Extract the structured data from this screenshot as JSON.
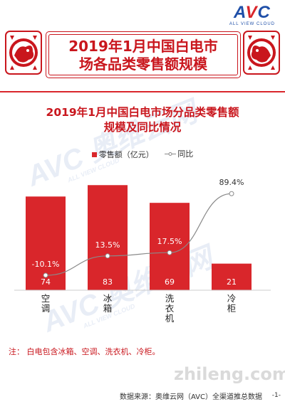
{
  "header": {
    "logo": "AVC",
    "logo_sub": "ALL VIEW CLOUD",
    "title_line1": "2019年1月中国白电市",
    "title_line2": "场各品类零售额规模"
  },
  "chart_data": {
    "type": "bar",
    "title_line1": "2019年1月中国白电市场分品类零售额",
    "title_line2": "规模及同比情况",
    "categories": [
      "空调",
      "冰箱",
      "洗衣机",
      "冷柜"
    ],
    "category_lines": [
      [
        "空",
        "调"
      ],
      [
        "冰",
        "箱"
      ],
      [
        "洗",
        "衣",
        "机"
      ],
      [
        "冷",
        "柜"
      ]
    ],
    "series": [
      {
        "name": "零售额（亿元）",
        "kind": "bar",
        "values": [
          74,
          83,
          69,
          21
        ],
        "color": "#d9262b"
      },
      {
        "name": "同比",
        "kind": "line",
        "values": [
          -10.1,
          13.5,
          17.5,
          89.4
        ],
        "color": "#8a8a8a"
      }
    ],
    "value_labels": [
      "74",
      "83",
      "69",
      "21"
    ],
    "yoy_labels": [
      "-10.1%",
      "13.5%",
      "17.5%",
      "89.4%"
    ],
    "ylim_bar": [
      0,
      100
    ],
    "ylim_line": [
      -30,
      100
    ],
    "grid": false,
    "legend_position": "top-center"
  },
  "footer": {
    "note": "注：  白电包含冰箱、空调、洗衣机、冷柜。",
    "source": "数据来源：奥维云网（AVC）全渠道推总数据",
    "page": "-1-",
    "watermark_site": "zhileng.com",
    "watermark_brand": "AVC 奥维云网",
    "watermark_sub": "ALL VIEW CLOUD"
  },
  "colors": {
    "accent": "#c9161d",
    "bar": "#d9262b",
    "line": "#8a8a8a",
    "brand": "#1f4fa8"
  }
}
